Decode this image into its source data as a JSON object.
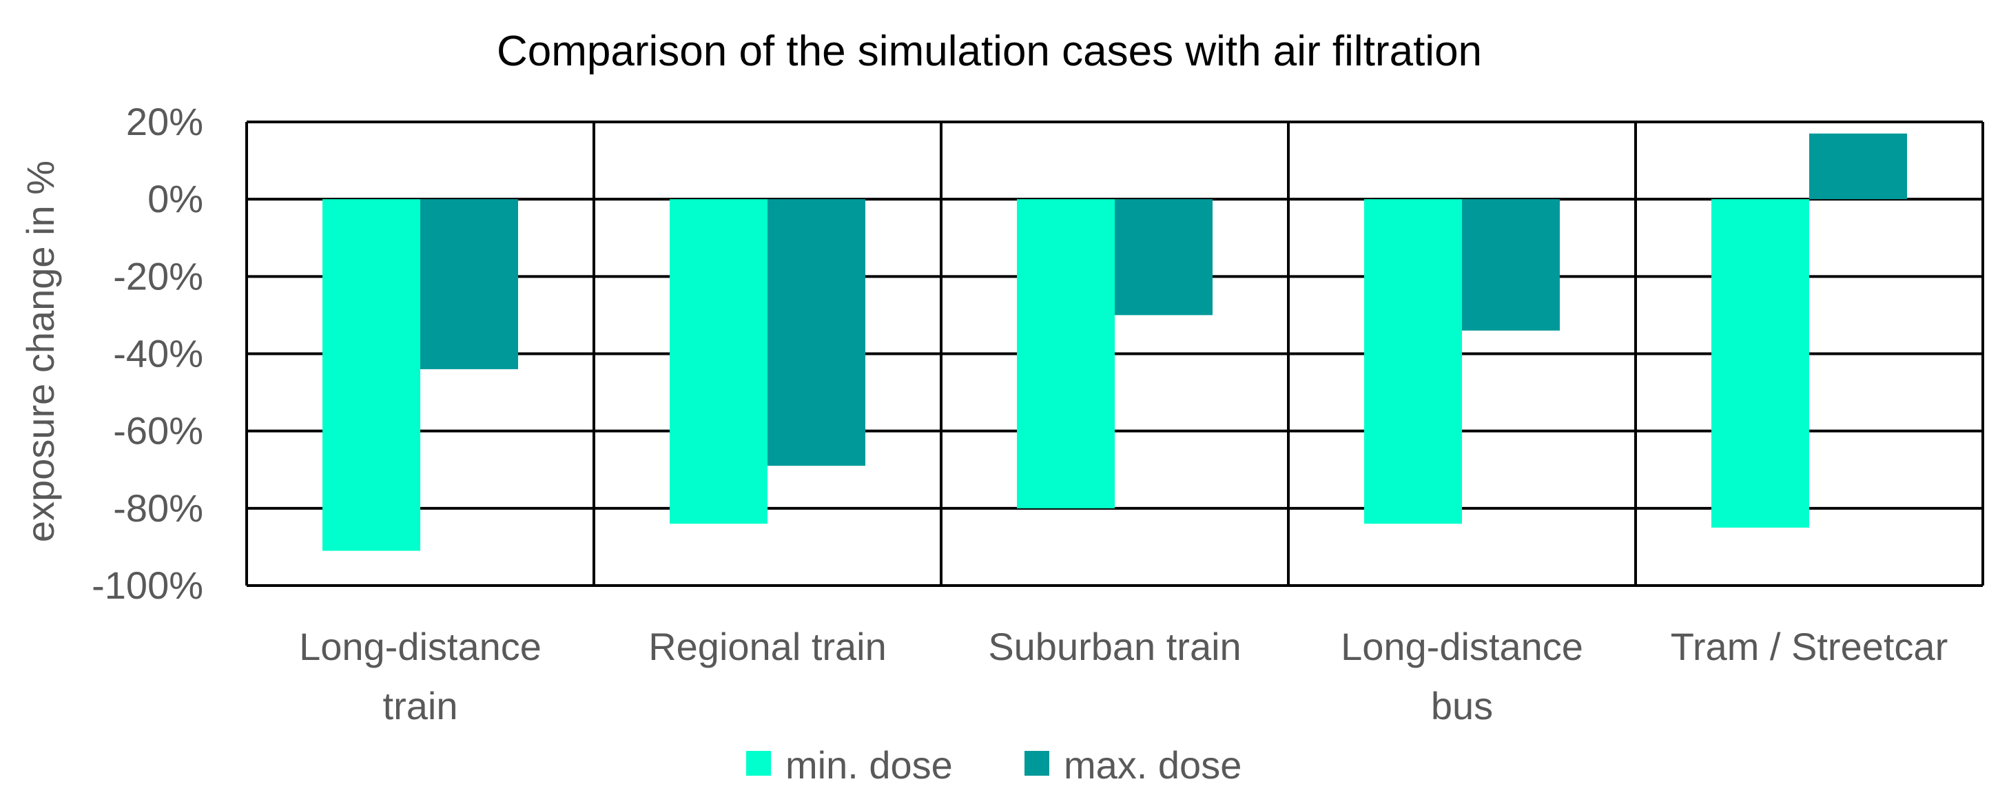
{
  "chart_data": {
    "type": "bar",
    "title": "Comparison of the simulation cases with air filtration",
    "xlabel": "",
    "ylabel": "exposure change in %",
    "categories": [
      [
        "Long-distance",
        "train"
      ],
      [
        "Regional train"
      ],
      [
        "Suburban train"
      ],
      [
        "Long-distance",
        "bus"
      ],
      [
        "Tram / Streetcar"
      ]
    ],
    "series": [
      {
        "name": "min. dose",
        "color": "#00FFCC",
        "values": [
          -91,
          -84,
          -80,
          -84,
          -85
        ]
      },
      {
        "name": "max. dose",
        "color": "#009999",
        "values": [
          -44,
          -69,
          -30,
          -34,
          17
        ]
      }
    ],
    "ylim": [
      -100,
      20
    ],
    "yticks": [
      20,
      0,
      -20,
      -40,
      -60,
      -80,
      -100
    ],
    "ytick_labels": [
      "20%",
      "0%",
      "-20%",
      "-40%",
      "-60%",
      "-80%",
      "-100%"
    ],
    "grid": true,
    "legend": "bottom"
  }
}
